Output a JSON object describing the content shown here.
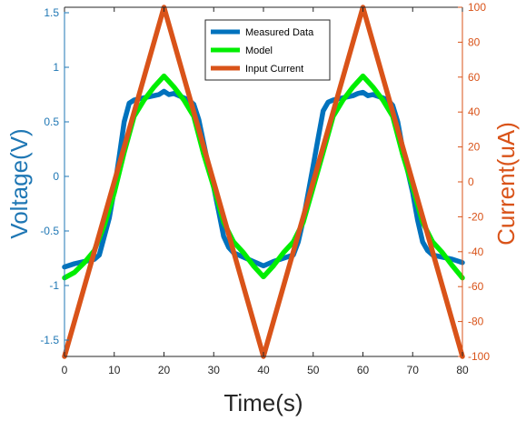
{
  "chart_data": {
    "type": "line",
    "xlabel": "Time(s)",
    "ylabel_left": "Voltage(V)",
    "ylabel_right": "Current(uA)",
    "xlim": [
      0,
      80
    ],
    "ylim_left": [
      -1.65,
      1.55
    ],
    "ylim_right": [
      -100,
      100
    ],
    "xticks": [
      0,
      10,
      20,
      30,
      40,
      50,
      60,
      70,
      80
    ],
    "yticks_left": [
      -1.5,
      -1,
      -0.5,
      0,
      0.5,
      1,
      1.5
    ],
    "yticks_right": [
      -100,
      -80,
      -60,
      -40,
      -20,
      0,
      20,
      40,
      60,
      80,
      100
    ],
    "grid": false,
    "legend": "top-center",
    "colors": {
      "left_axis": "#1f77b4",
      "right_axis": "#d95319"
    },
    "series": [
      {
        "name": "Measured Data",
        "axis": "left",
        "color": "#0072bd",
        "x": [
          0,
          2,
          4,
          6,
          7,
          8,
          9,
          10,
          11,
          12,
          13,
          14,
          16,
          18,
          19,
          20,
          21,
          22,
          24,
          25,
          26,
          27,
          28,
          29,
          30,
          31,
          32,
          33,
          34,
          36,
          38,
          39,
          40,
          41,
          42,
          44,
          46,
          47,
          48,
          49,
          50,
          51,
          52,
          53,
          54,
          56,
          58,
          59,
          60,
          61,
          62,
          64,
          65,
          66,
          67,
          68,
          69,
          70,
          71,
          72,
          73,
          74,
          76,
          78,
          80
        ],
        "y": [
          -0.83,
          -0.8,
          -0.78,
          -0.76,
          -0.72,
          -0.55,
          -0.38,
          -0.12,
          0.18,
          0.5,
          0.67,
          0.7,
          0.72,
          0.74,
          0.75,
          0.78,
          0.75,
          0.76,
          0.72,
          0.7,
          0.66,
          0.52,
          0.3,
          0.08,
          -0.1,
          -0.32,
          -0.55,
          -0.65,
          -0.7,
          -0.74,
          -0.78,
          -0.8,
          -0.82,
          -0.8,
          -0.78,
          -0.75,
          -0.72,
          -0.6,
          -0.4,
          -0.15,
          0.1,
          0.35,
          0.6,
          0.68,
          0.7,
          0.72,
          0.74,
          0.76,
          0.77,
          0.74,
          0.75,
          0.72,
          0.7,
          0.65,
          0.5,
          0.25,
          0.05,
          -0.15,
          -0.4,
          -0.6,
          -0.68,
          -0.72,
          -0.74,
          -0.76,
          -0.79
        ]
      },
      {
        "name": "Model",
        "axis": "left",
        "color": "#00ee00",
        "x": [
          0,
          2,
          4,
          6,
          8,
          10,
          12,
          14,
          16,
          18,
          20,
          22,
          24,
          26,
          28,
          30,
          32,
          34,
          36,
          38,
          40,
          42,
          44,
          46,
          48,
          50,
          52,
          54,
          56,
          58,
          60,
          62,
          64,
          66,
          68,
          70,
          72,
          74,
          76,
          78,
          80
        ],
        "y": [
          -0.93,
          -0.88,
          -0.79,
          -0.68,
          -0.45,
          -0.15,
          0.22,
          0.55,
          0.7,
          0.82,
          0.92,
          0.82,
          0.7,
          0.55,
          0.2,
          -0.1,
          -0.42,
          -0.6,
          -0.7,
          -0.82,
          -0.92,
          -0.82,
          -0.7,
          -0.6,
          -0.42,
          -0.1,
          0.22,
          0.55,
          0.7,
          0.82,
          0.92,
          0.82,
          0.7,
          0.55,
          0.2,
          -0.1,
          -0.42,
          -0.6,
          -0.7,
          -0.82,
          -0.93
        ]
      },
      {
        "name": "Input Current",
        "axis": "right",
        "color": "#d95319",
        "x": [
          0,
          20,
          40,
          60,
          80
        ],
        "y": [
          -100,
          100,
          -100,
          100,
          -100
        ]
      }
    ]
  }
}
